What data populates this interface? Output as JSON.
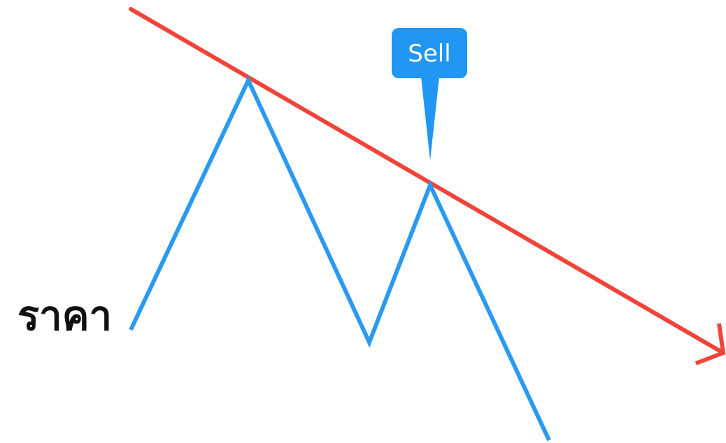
{
  "labels": {
    "price": "ราคา",
    "signal": "Sell"
  }
}
